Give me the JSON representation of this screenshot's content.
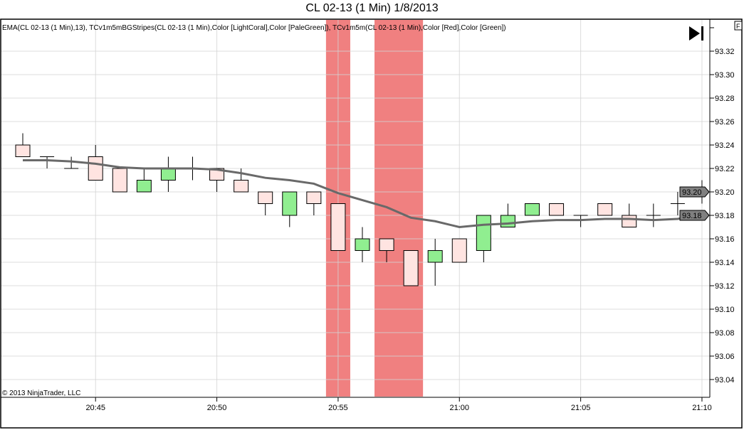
{
  "chart_data": {
    "type": "candlestick",
    "title": "CL 02-13 (1 Min)  1/8/2013",
    "indicator_label": "EMA(CL 02-13 (1 Min),13), TCv1m5mBGStripes(CL 02-13 (1 Min),Color [LightCoral],Color [PaleGreen]), TCv1m5m(CL 02-13 (1 Min),Color [Red],Color [Green])",
    "copyright": "© 2013 NinjaTrader, LLC",
    "f_button": "F",
    "ylim": [
      93.02,
      93.34
    ],
    "y_ticks": [
      "93.04",
      "93.06",
      "93.08",
      "93.10",
      "93.12",
      "93.14",
      "93.16",
      "93.18",
      "93.20",
      "93.22",
      "93.24",
      "93.26",
      "93.28",
      "93.30",
      "93.32"
    ],
    "x_ticks": [
      {
        "label": "20:45",
        "index": 3
      },
      {
        "label": "20:50",
        "index": 8
      },
      {
        "label": "20:55",
        "index": 13
      },
      {
        "label": "21:00",
        "index": 18
      },
      {
        "label": "21:05",
        "index": 23
      },
      {
        "label": "21:10",
        "index": 28
      }
    ],
    "price_markers": [
      {
        "label": "93.20",
        "value": 93.2
      },
      {
        "label": "93.18",
        "value": 93.18
      }
    ],
    "colors": {
      "up": "#90EE90",
      "down": "#FFE4E1",
      "stripe": "#F08080",
      "ema": "#696969",
      "grid": "#D3D3D3"
    },
    "stripes": [
      {
        "from": 12.5,
        "to": 13.5
      },
      {
        "from": 14.5,
        "to": 16.5
      }
    ],
    "bars": [
      {
        "t": "20:42",
        "o": 93.24,
        "h": 93.25,
        "l": 93.23,
        "c": 93.23,
        "fill": "down"
      },
      {
        "t": "20:43",
        "o": 93.23,
        "h": 93.23,
        "l": 93.22,
        "c": 93.23,
        "fill": "none"
      },
      {
        "t": "20:44",
        "o": 93.22,
        "h": 93.23,
        "l": 93.22,
        "c": 93.22,
        "fill": "none"
      },
      {
        "t": "20:45",
        "o": 93.23,
        "h": 93.24,
        "l": 93.21,
        "c": 93.21,
        "fill": "down"
      },
      {
        "t": "20:46",
        "o": 93.22,
        "h": 93.22,
        "l": 93.2,
        "c": 93.2,
        "fill": "down"
      },
      {
        "t": "20:47",
        "o": 93.2,
        "h": 93.22,
        "l": 93.2,
        "c": 93.21,
        "fill": "up"
      },
      {
        "t": "20:48",
        "o": 93.21,
        "h": 93.23,
        "l": 93.2,
        "c": 93.22,
        "fill": "up"
      },
      {
        "t": "20:49",
        "o": 93.22,
        "h": 93.23,
        "l": 93.21,
        "c": 93.22,
        "fill": "none"
      },
      {
        "t": "20:50",
        "o": 93.22,
        "h": 93.22,
        "l": 93.2,
        "c": 93.21,
        "fill": "down"
      },
      {
        "t": "20:51",
        "o": 93.21,
        "h": 93.22,
        "l": 93.2,
        "c": 93.2,
        "fill": "down"
      },
      {
        "t": "20:52",
        "o": 93.2,
        "h": 93.2,
        "l": 93.18,
        "c": 93.19,
        "fill": "down"
      },
      {
        "t": "20:53",
        "o": 93.18,
        "h": 93.2,
        "l": 93.17,
        "c": 93.2,
        "fill": "up"
      },
      {
        "t": "20:54",
        "o": 93.2,
        "h": 93.2,
        "l": 93.18,
        "c": 93.19,
        "fill": "down"
      },
      {
        "t": "20:55",
        "o": 93.19,
        "h": 93.19,
        "l": 93.15,
        "c": 93.15,
        "fill": "down"
      },
      {
        "t": "20:56",
        "o": 93.15,
        "h": 93.17,
        "l": 93.14,
        "c": 93.16,
        "fill": "up"
      },
      {
        "t": "20:57",
        "o": 93.16,
        "h": 93.16,
        "l": 93.14,
        "c": 93.15,
        "fill": "down"
      },
      {
        "t": "20:58",
        "o": 93.15,
        "h": 93.15,
        "l": 93.12,
        "c": 93.12,
        "fill": "down"
      },
      {
        "t": "20:59",
        "o": 93.14,
        "h": 93.16,
        "l": 93.12,
        "c": 93.15,
        "fill": "up"
      },
      {
        "t": "21:00",
        "o": 93.16,
        "h": 93.16,
        "l": 93.14,
        "c": 93.14,
        "fill": "down"
      },
      {
        "t": "21:01",
        "o": 93.15,
        "h": 93.18,
        "l": 93.14,
        "c": 93.18,
        "fill": "up"
      },
      {
        "t": "21:02",
        "o": 93.17,
        "h": 93.19,
        "l": 93.17,
        "c": 93.18,
        "fill": "up"
      },
      {
        "t": "21:03",
        "o": 93.18,
        "h": 93.19,
        "l": 93.18,
        "c": 93.19,
        "fill": "up"
      },
      {
        "t": "21:04",
        "o": 93.19,
        "h": 93.19,
        "l": 93.18,
        "c": 93.18,
        "fill": "down"
      },
      {
        "t": "21:05",
        "o": 93.18,
        "h": 93.18,
        "l": 93.17,
        "c": 93.18,
        "fill": "none"
      },
      {
        "t": "21:06",
        "o": 93.19,
        "h": 93.19,
        "l": 93.18,
        "c": 93.18,
        "fill": "down"
      },
      {
        "t": "21:07",
        "o": 93.18,
        "h": 93.19,
        "l": 93.17,
        "c": 93.17,
        "fill": "down"
      },
      {
        "t": "21:08",
        "o": 93.18,
        "h": 93.19,
        "l": 93.17,
        "c": 93.18,
        "fill": "none"
      },
      {
        "t": "21:09",
        "o": 93.19,
        "h": 93.2,
        "l": 93.18,
        "c": 93.19,
        "fill": "none"
      },
      {
        "t": "21:10",
        "o": 93.2,
        "h": 93.21,
        "l": 93.19,
        "c": 93.2,
        "fill": "none"
      }
    ],
    "ema": [
      93.227,
      93.227,
      93.226,
      93.224,
      93.221,
      93.22,
      93.22,
      93.22,
      93.219,
      93.216,
      93.212,
      93.21,
      93.207,
      93.199,
      93.193,
      93.187,
      93.178,
      93.175,
      93.17,
      93.172,
      93.173,
      93.175,
      93.176,
      93.176,
      93.177,
      93.177,
      93.176,
      93.177,
      93.181
    ]
  }
}
